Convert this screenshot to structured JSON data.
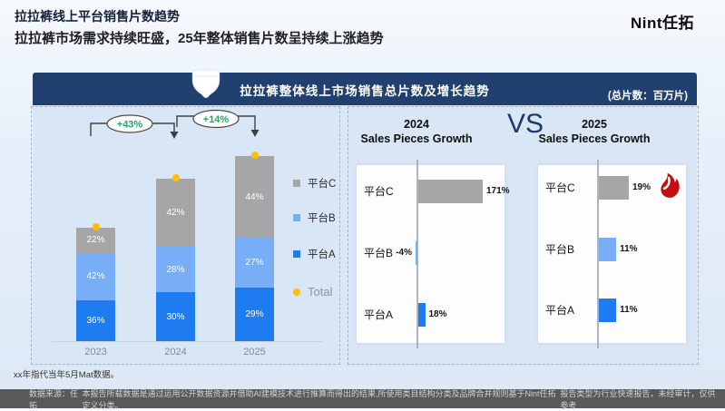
{
  "header": {
    "title": "拉拉裤线上平台销售片数趋势",
    "subtitle": "拉拉裤市场需求持续旺盛，25年整体销售片数呈持续上涨趋势",
    "logo": "Nint任拓"
  },
  "banner": {
    "title": "拉拉裤整体线上市场销售总片数及增长趋势",
    "unit_note": "(总片数：百万片)",
    "icon": "diaper-icon"
  },
  "vs_label": "VS",
  "chart_data": [
    {
      "type": "bar",
      "subtype": "stacked-percent-share",
      "title": "拉拉裤整体线上市场销售总片数及增长趋势",
      "unit": "百万片 (share labels in %)",
      "categories": [
        "2023",
        "2024",
        "2025"
      ],
      "series": [
        {
          "name": "平台A",
          "color": "#1f7cf0",
          "values": [
            36,
            30,
            29
          ]
        },
        {
          "name": "平台B",
          "color": "#78aef6",
          "values": [
            42,
            28,
            27
          ]
        },
        {
          "name": "平台C",
          "color": "#a6a6a6",
          "values": [
            22,
            42,
            44
          ]
        }
      ],
      "growth_labels": [
        "+43%",
        "+14%"
      ],
      "total_marker": {
        "name": "Total",
        "color": "#ffc000"
      },
      "legend_position": "right"
    },
    {
      "type": "bar",
      "orientation": "horizontal",
      "title": "2024 Sales Pieces Growth",
      "title_lines": [
        "2024",
        "Sales Pieces Growth"
      ],
      "categories": [
        "平台C",
        "平台B",
        "平台A"
      ],
      "values": [
        171,
        -4,
        18
      ],
      "labels": [
        "171%",
        "-4%",
        "18%"
      ],
      "colors": [
        "#a6a6a6",
        "#78aef6",
        "#1f7cf0"
      ]
    },
    {
      "type": "bar",
      "orientation": "horizontal",
      "title": "2025 Sales Pieces Growth",
      "title_lines": [
        "2025",
        "Sales Pieces Growth"
      ],
      "categories": [
        "平台C",
        "平台B",
        "平台A"
      ],
      "values": [
        19,
        11,
        11
      ],
      "labels": [
        "19%",
        "11%",
        "11%"
      ],
      "colors": [
        "#a6a6a6",
        "#78aef6",
        "#1f7cf0"
      ],
      "highlight": {
        "row": "平台C",
        "icon": "fire-icon",
        "color": "#c50f0f"
      }
    }
  ],
  "footnote": "xx年指代当年5月Mat数据。",
  "footer": {
    "source": "数据来源：任拓",
    "disclaimer": "本报告所载数据是通过运用公开数据资源并借助AI建模技术进行推算而得出的结果,所使用类目结构分类及品牌合并规则基于Nint任拓定义分类。",
    "report_type": "报告类型为行业快速报告，未经审计，仅供参考"
  }
}
